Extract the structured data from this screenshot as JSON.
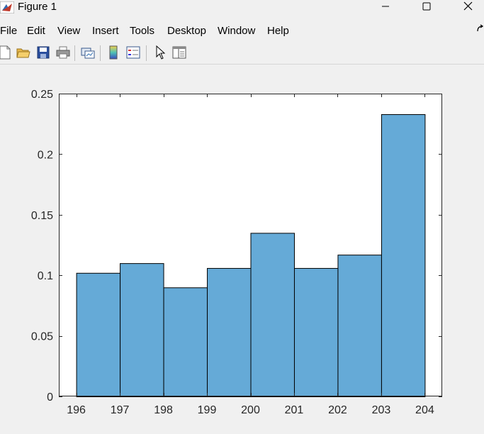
{
  "window": {
    "title": "Figure 1",
    "controls": [
      "minimize",
      "maximize",
      "close"
    ]
  },
  "menu": {
    "items": [
      "File",
      "Edit",
      "View",
      "Insert",
      "Tools",
      "Desktop",
      "Window",
      "Help"
    ]
  },
  "toolbar": {
    "buttons": [
      "new-figure-icon",
      "open-file-icon",
      "save-icon",
      "print-icon",
      "link-plot-icon",
      "colorbar-icon",
      "legend-icon",
      "pointer-icon",
      "property-inspector-icon"
    ]
  },
  "colors": {
    "bar_fill": "#65aad7",
    "bar_edge": "#000000",
    "axes_bg": "#ffffff",
    "figure_bg": "#f0f0f0"
  },
  "chart_data": {
    "type": "bar",
    "bin_edges": [
      196,
      197,
      198,
      199,
      200,
      201,
      202,
      203,
      204
    ],
    "values": [
      0.102,
      0.11,
      0.09,
      0.106,
      0.135,
      0.106,
      0.117,
      0.233
    ],
    "xlim": [
      195.6,
      204.4
    ],
    "ylim": [
      0,
      0.25
    ],
    "xticks": [
      "196",
      "197",
      "198",
      "199",
      "200",
      "201",
      "202",
      "203",
      "204"
    ],
    "yticks": [
      "0",
      "0.05",
      "0.1",
      "0.15",
      "0.2",
      "0.25"
    ],
    "ytick_values": [
      0,
      0.05,
      0.1,
      0.15,
      0.2,
      0.25
    ],
    "xtick_values": [
      196,
      197,
      198,
      199,
      200,
      201,
      202,
      203,
      204
    ],
    "grid": false,
    "title": "",
    "xlabel": "",
    "ylabel": ""
  }
}
